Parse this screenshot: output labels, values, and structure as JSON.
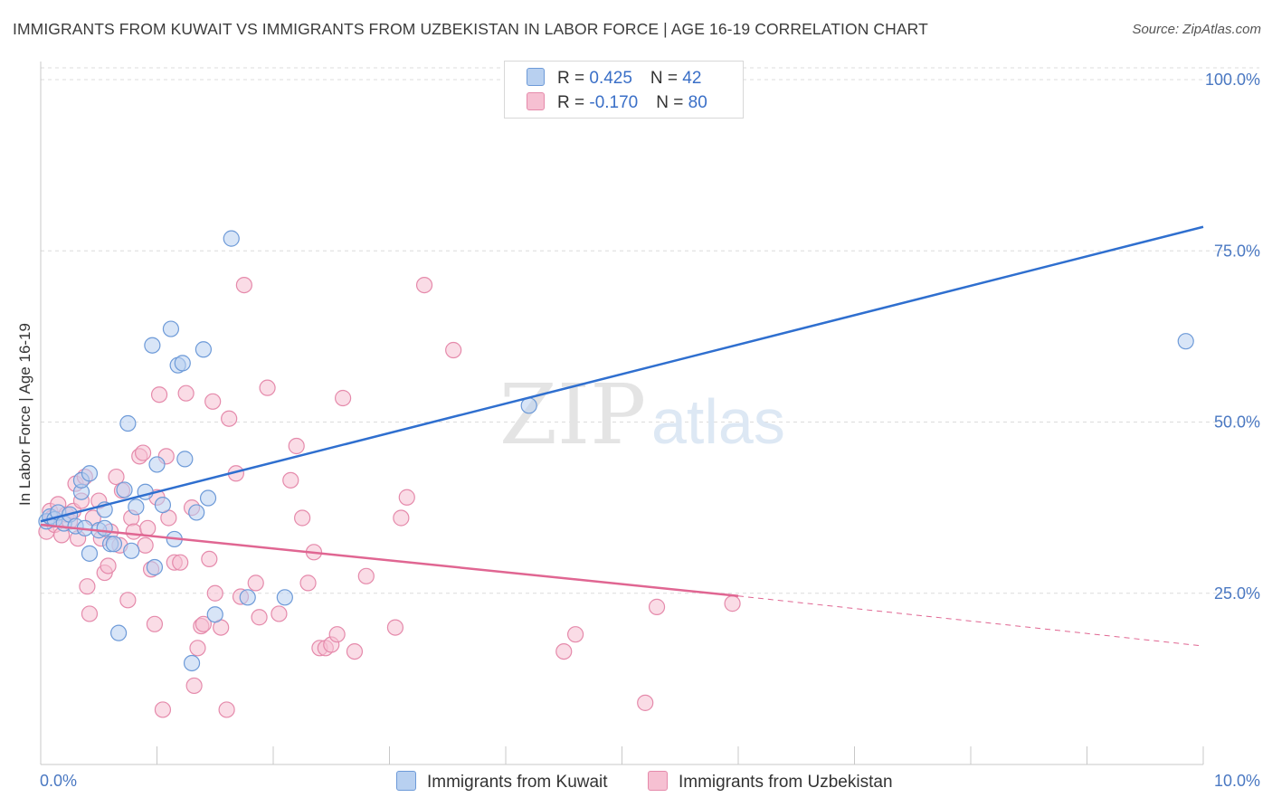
{
  "title": "IMMIGRANTS FROM KUWAIT VS IMMIGRANTS FROM UZBEKISTAN IN LABOR FORCE | AGE 16-19 CORRELATION CHART",
  "source": "Source: ZipAtlas.com",
  "watermark": {
    "zip": "ZIP",
    "atlas": "atlas"
  },
  "legend": {
    "kuwait": {
      "r_label": "R = ",
      "r_value": "0.425",
      "n_label": "N = ",
      "n_value": "42"
    },
    "uzbekistan": {
      "r_label": "R = ",
      "r_value": "-0.170",
      "n_label": "N = ",
      "n_value": "80"
    }
  },
  "colors": {
    "kuwait_fill": "#b8d0f0",
    "kuwait_stroke": "#6d9ad8",
    "kuwait_line": "#2f6fcf",
    "uzbekistan_fill": "#f6c0d2",
    "uzbekistan_stroke": "#e58aab",
    "uzbekistan_line": "#e06692"
  },
  "chart_data": {
    "type": "scatter",
    "title": "IMMIGRANTS FROM KUWAIT VS IMMIGRANTS FROM UZBEKISTAN IN LABOR FORCE | AGE 16-19 CORRELATION CHART",
    "xlabel": "",
    "ylabel": "In Labor Force | Age 16-19",
    "xlim": [
      0,
      10
    ],
    "ylim": [
      0,
      102
    ],
    "x_tick_labels": [
      "0.0%",
      "10.0%"
    ],
    "y_ticks": [
      25,
      50,
      75,
      100
    ],
    "y_tick_labels": [
      "25.0%",
      "50.0%",
      "75.0%",
      "100.0%"
    ],
    "legend_position": "top-center",
    "series": [
      {
        "name": "Immigrants from Kuwait",
        "r": 0.425,
        "n": 42,
        "trend": {
          "x": [
            0.0,
            10.0
          ],
          "y": [
            35.5,
            78.5
          ]
        },
        "points": [
          {
            "x": 0.05,
            "y": 35.5
          },
          {
            "x": 0.08,
            "y": 36.2
          },
          {
            "x": 0.12,
            "y": 35.8
          },
          {
            "x": 0.15,
            "y": 36.8
          },
          {
            "x": 0.2,
            "y": 35.2
          },
          {
            "x": 0.25,
            "y": 36.5
          },
          {
            "x": 0.3,
            "y": 34.8
          },
          {
            "x": 0.35,
            "y": 39.8
          },
          {
            "x": 0.38,
            "y": 34.5
          },
          {
            "x": 0.35,
            "y": 41.5
          },
          {
            "x": 0.42,
            "y": 30.8
          },
          {
            "x": 0.42,
            "y": 42.5
          },
          {
            "x": 0.5,
            "y": 34.2
          },
          {
            "x": 0.55,
            "y": 34.5
          },
          {
            "x": 0.55,
            "y": 37.2
          },
          {
            "x": 0.6,
            "y": 32.2
          },
          {
            "x": 0.63,
            "y": 32.2
          },
          {
            "x": 0.67,
            "y": 19.2
          },
          {
            "x": 0.72,
            "y": 40.1
          },
          {
            "x": 0.75,
            "y": 49.8
          },
          {
            "x": 0.78,
            "y": 31.2
          },
          {
            "x": 0.82,
            "y": 37.6
          },
          {
            "x": 0.9,
            "y": 39.8
          },
          {
            "x": 0.96,
            "y": 61.2
          },
          {
            "x": 0.98,
            "y": 28.8
          },
          {
            "x": 1.0,
            "y": 43.8
          },
          {
            "x": 1.05,
            "y": 37.9
          },
          {
            "x": 1.12,
            "y": 63.6
          },
          {
            "x": 1.15,
            "y": 32.9
          },
          {
            "x": 1.18,
            "y": 58.3
          },
          {
            "x": 1.22,
            "y": 58.6
          },
          {
            "x": 1.24,
            "y": 44.6
          },
          {
            "x": 1.3,
            "y": 14.8
          },
          {
            "x": 1.34,
            "y": 36.8
          },
          {
            "x": 1.4,
            "y": 60.6
          },
          {
            "x": 1.44,
            "y": 38.9
          },
          {
            "x": 1.5,
            "y": 21.9
          },
          {
            "x": 1.64,
            "y": 76.8
          },
          {
            "x": 1.78,
            "y": 24.4
          },
          {
            "x": 2.1,
            "y": 24.4
          },
          {
            "x": 4.2,
            "y": 52.4
          },
          {
            "x": 9.85,
            "y": 61.8
          }
        ]
      },
      {
        "name": "Immigrants from Uzbekistan",
        "r": -0.17,
        "n": 80,
        "trend": {
          "x": [
            0.0,
            6.0
          ],
          "y": [
            35.0,
            24.6
          ]
        },
        "trend_dashed": {
          "x": [
            6.0,
            10.0
          ],
          "y": [
            24.6,
            17.3
          ]
        },
        "points": [
          {
            "x": 0.05,
            "y": 34.0
          },
          {
            "x": 0.08,
            "y": 37.0
          },
          {
            "x": 0.1,
            "y": 36.0
          },
          {
            "x": 0.12,
            "y": 35.0
          },
          {
            "x": 0.15,
            "y": 38.0
          },
          {
            "x": 0.18,
            "y": 33.5
          },
          {
            "x": 0.22,
            "y": 36.5
          },
          {
            "x": 0.25,
            "y": 35.5
          },
          {
            "x": 0.28,
            "y": 37.0
          },
          {
            "x": 0.3,
            "y": 41.0
          },
          {
            "x": 0.32,
            "y": 33.0
          },
          {
            "x": 0.35,
            "y": 38.5
          },
          {
            "x": 0.38,
            "y": 42.0
          },
          {
            "x": 0.4,
            "y": 26.0
          },
          {
            "x": 0.42,
            "y": 22.0
          },
          {
            "x": 0.45,
            "y": 36.0
          },
          {
            "x": 0.5,
            "y": 38.5
          },
          {
            "x": 0.52,
            "y": 33.0
          },
          {
            "x": 0.55,
            "y": 28.0
          },
          {
            "x": 0.58,
            "y": 29.0
          },
          {
            "x": 0.6,
            "y": 34.0
          },
          {
            "x": 0.65,
            "y": 42.0
          },
          {
            "x": 0.68,
            "y": 32.0
          },
          {
            "x": 0.7,
            "y": 40.0
          },
          {
            "x": 0.75,
            "y": 24.0
          },
          {
            "x": 0.78,
            "y": 36.0
          },
          {
            "x": 0.8,
            "y": 34.0
          },
          {
            "x": 0.85,
            "y": 45.0
          },
          {
            "x": 0.88,
            "y": 45.5
          },
          {
            "x": 0.9,
            "y": 32.0
          },
          {
            "x": 0.92,
            "y": 34.5
          },
          {
            "x": 0.95,
            "y": 28.5
          },
          {
            "x": 0.98,
            "y": 20.5
          },
          {
            "x": 1.0,
            "y": 39.0
          },
          {
            "x": 1.02,
            "y": 54.0
          },
          {
            "x": 1.05,
            "y": 8.0
          },
          {
            "x": 1.08,
            "y": 45.0
          },
          {
            "x": 1.1,
            "y": 36.0
          },
          {
            "x": 1.15,
            "y": 29.5
          },
          {
            "x": 1.2,
            "y": 29.5
          },
          {
            "x": 1.25,
            "y": 54.2
          },
          {
            "x": 1.3,
            "y": 37.5
          },
          {
            "x": 1.32,
            "y": 11.5
          },
          {
            "x": 1.35,
            "y": 17.0
          },
          {
            "x": 1.38,
            "y": 20.2
          },
          {
            "x": 1.4,
            "y": 20.5
          },
          {
            "x": 1.45,
            "y": 30.0
          },
          {
            "x": 1.48,
            "y": 53.0
          },
          {
            "x": 1.5,
            "y": 25.0
          },
          {
            "x": 1.55,
            "y": 20.0
          },
          {
            "x": 1.6,
            "y": 8.0
          },
          {
            "x": 1.62,
            "y": 50.5
          },
          {
            "x": 1.68,
            "y": 42.5
          },
          {
            "x": 1.72,
            "y": 24.5
          },
          {
            "x": 1.75,
            "y": 70.0
          },
          {
            "x": 1.85,
            "y": 26.5
          },
          {
            "x": 1.88,
            "y": 21.5
          },
          {
            "x": 1.95,
            "y": 55.0
          },
          {
            "x": 2.05,
            "y": 22.0
          },
          {
            "x": 2.15,
            "y": 41.5
          },
          {
            "x": 2.2,
            "y": 46.5
          },
          {
            "x": 2.25,
            "y": 36.0
          },
          {
            "x": 2.3,
            "y": 26.5
          },
          {
            "x": 2.35,
            "y": 31.0
          },
          {
            "x": 2.4,
            "y": 17.0
          },
          {
            "x": 2.45,
            "y": 17.0
          },
          {
            "x": 2.5,
            "y": 17.5
          },
          {
            "x": 2.55,
            "y": 19.0
          },
          {
            "x": 2.6,
            "y": 53.5
          },
          {
            "x": 2.7,
            "y": 16.5
          },
          {
            "x": 2.8,
            "y": 27.5
          },
          {
            "x": 3.05,
            "y": 20.0
          },
          {
            "x": 3.1,
            "y": 36.0
          },
          {
            "x": 3.15,
            "y": 39.0
          },
          {
            "x": 3.3,
            "y": 70.0
          },
          {
            "x": 3.55,
            "y": 60.5
          },
          {
            "x": 4.5,
            "y": 16.5
          },
          {
            "x": 4.6,
            "y": 19.0
          },
          {
            "x": 5.2,
            "y": 9.0
          },
          {
            "x": 5.3,
            "y": 23.0
          },
          {
            "x": 5.95,
            "y": 23.5
          }
        ]
      }
    ]
  }
}
